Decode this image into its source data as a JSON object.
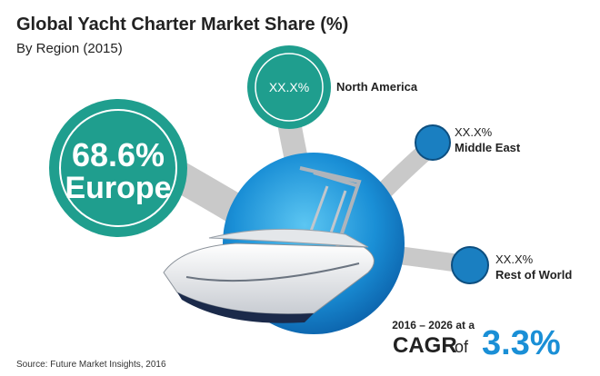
{
  "header": {
    "title": "Global Yacht Charter Market Share (%)",
    "subtitle": "By Region (2015)"
  },
  "regions": [
    {
      "value": "68.6%",
      "label": "Europe"
    },
    {
      "value": "XX.X%",
      "label": "North America"
    },
    {
      "value": "XX.X%",
      "label": "Middle East"
    },
    {
      "value": "XX.X%",
      "label": "Rest of World"
    }
  ],
  "cagr": {
    "period": "2016 – 2026 at a",
    "label": "CAGR",
    "connector": "of",
    "value": "3.3%"
  },
  "source": "Source: Future Market Insights, 2016"
}
